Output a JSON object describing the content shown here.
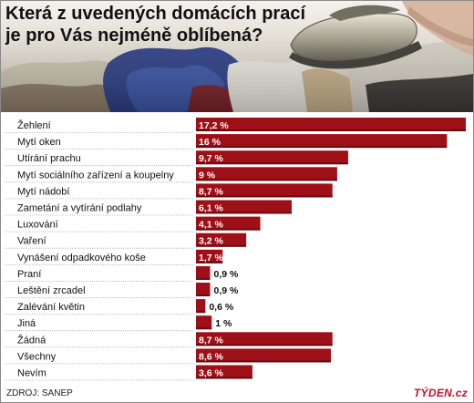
{
  "title_lines": [
    "Která z uvedených domácích prací",
    "je pro Vás nejméně oblíbená?"
  ],
  "source": "ZDROJ: SANEP",
  "brand": "TÝDEN.cz",
  "colors": {
    "bar": "#9e1018",
    "bar_dark": "#6b0a10",
    "separator": "#b0b0b0"
  },
  "chart_data": {
    "type": "bar",
    "orientation": "horizontal",
    "title": "Která z uvedených domácích prací je pro Vás nejméně oblíbená?",
    "categories": [
      "Žehlení",
      "Mytí oken",
      "Utírání prachu",
      "Mytí sociálního zařízení a koupelny",
      "Mytí nádobí",
      "Zametání a vytírání podlahy",
      "Luxování",
      "Vaření",
      "Vynášení odpadkového koše",
      "Praní",
      "Leštění zrcadel",
      "Zalévání květin",
      "Jiná",
      "Žádná",
      "Všechny",
      "Nevím"
    ],
    "values": [
      17.2,
      16,
      9.7,
      9,
      8.7,
      6.1,
      4.1,
      3.2,
      1.7,
      0.9,
      0.9,
      0.6,
      1,
      8.7,
      8.6,
      3.6
    ],
    "labels": [
      "17,2 %",
      "16 %",
      "9,7 %",
      "9 %",
      "8,7 %",
      "6,1 %",
      "4,1 %",
      "3,2 %",
      "1,7 %",
      "0,9 %",
      "0,9 %",
      "0,6 %",
      "1 %",
      "8,7 %",
      "8,6 %",
      "3,6 %"
    ],
    "unit": "%",
    "xlim": [
      0,
      17.2
    ],
    "grid": false,
    "legend": "none"
  }
}
